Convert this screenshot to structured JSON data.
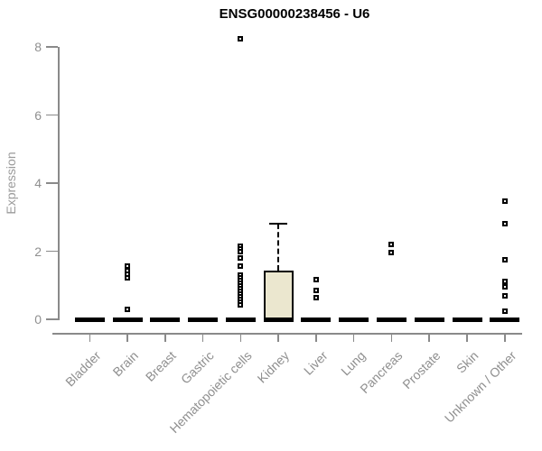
{
  "title": "ENSG00000238456 - U6",
  "chart_data": {
    "type": "boxplot",
    "title": "ENSG00000238456 - U6",
    "ylabel": "Expression",
    "xlabel": "",
    "ylim": [
      0,
      8.6
    ],
    "yticks": [
      0,
      2,
      4,
      6,
      8
    ],
    "grid": false,
    "legend": "none",
    "categories": [
      "Bladder",
      "Brain",
      "Breast",
      "Gastric",
      "Hematopoietic cells",
      "Kidney",
      "Liver",
      "Lung",
      "Pancreas",
      "Prostate",
      "Skin",
      "Unknown / Other"
    ],
    "series": [
      {
        "category": "Bladder",
        "q1": 0,
        "median": 0,
        "q3": 0,
        "whisker_low": 0,
        "whisker_high": 0,
        "outliers": []
      },
      {
        "category": "Brain",
        "q1": 0,
        "median": 0,
        "q3": 0,
        "whisker_low": 0,
        "whisker_high": 0,
        "outliers": [
          1.57,
          1.44,
          1.33,
          1.23,
          0.3
        ]
      },
      {
        "category": "Breast",
        "q1": 0,
        "median": 0,
        "q3": 0,
        "whisker_low": 0,
        "whisker_high": 0,
        "outliers": []
      },
      {
        "category": "Gastric",
        "q1": 0,
        "median": 0,
        "q3": 0,
        "whisker_low": 0,
        "whisker_high": 0,
        "outliers": []
      },
      {
        "category": "Hematopoietic cells",
        "q1": 0,
        "median": 0,
        "q3": 0,
        "whisker_low": 0,
        "whisker_high": 0,
        "outliers": [
          8.25,
          2.15,
          2.07,
          1.98,
          1.8,
          1.55,
          1.3,
          1.22,
          1.14,
          1.06,
          0.98,
          0.9,
          0.82,
          0.74,
          0.66,
          0.58,
          0.5,
          0.42
        ]
      },
      {
        "category": "Kidney",
        "q1": 0,
        "median": 0,
        "q3": 1.43,
        "whisker_low": 0,
        "whisker_high": 2.8,
        "outliers": []
      },
      {
        "category": "Liver",
        "q1": 0,
        "median": 0,
        "q3": 0,
        "whisker_low": 0,
        "whisker_high": 0,
        "outliers": [
          1.17,
          0.85,
          0.63
        ]
      },
      {
        "category": "Lung",
        "q1": 0,
        "median": 0,
        "q3": 0,
        "whisker_low": 0,
        "whisker_high": 0,
        "outliers": []
      },
      {
        "category": "Pancreas",
        "q1": 0,
        "median": 0,
        "q3": 0,
        "whisker_low": 0,
        "whisker_high": 0,
        "outliers": [
          2.21,
          1.97
        ]
      },
      {
        "category": "Prostate",
        "q1": 0,
        "median": 0,
        "q3": 0,
        "whisker_low": 0,
        "whisker_high": 0,
        "outliers": []
      },
      {
        "category": "Skin",
        "q1": 0,
        "median": 0,
        "q3": 0,
        "whisker_low": 0,
        "whisker_high": 0,
        "outliers": []
      },
      {
        "category": "Unknown / Other",
        "q1": 0,
        "median": 0,
        "q3": 0,
        "whisker_low": 0,
        "whisker_high": 0,
        "outliers": [
          3.47,
          2.8,
          1.76,
          1.12,
          0.95,
          0.68,
          0.25
        ]
      }
    ],
    "marker": "open-square",
    "colors": {
      "box_fill": "#ebe7cf",
      "box_border": "#000000",
      "axis": "#8a8a8a",
      "text": "#8f8f8f",
      "title": "#000000",
      "outlier_fill": "#ffffff",
      "outlier_border": "#000000"
    }
  }
}
